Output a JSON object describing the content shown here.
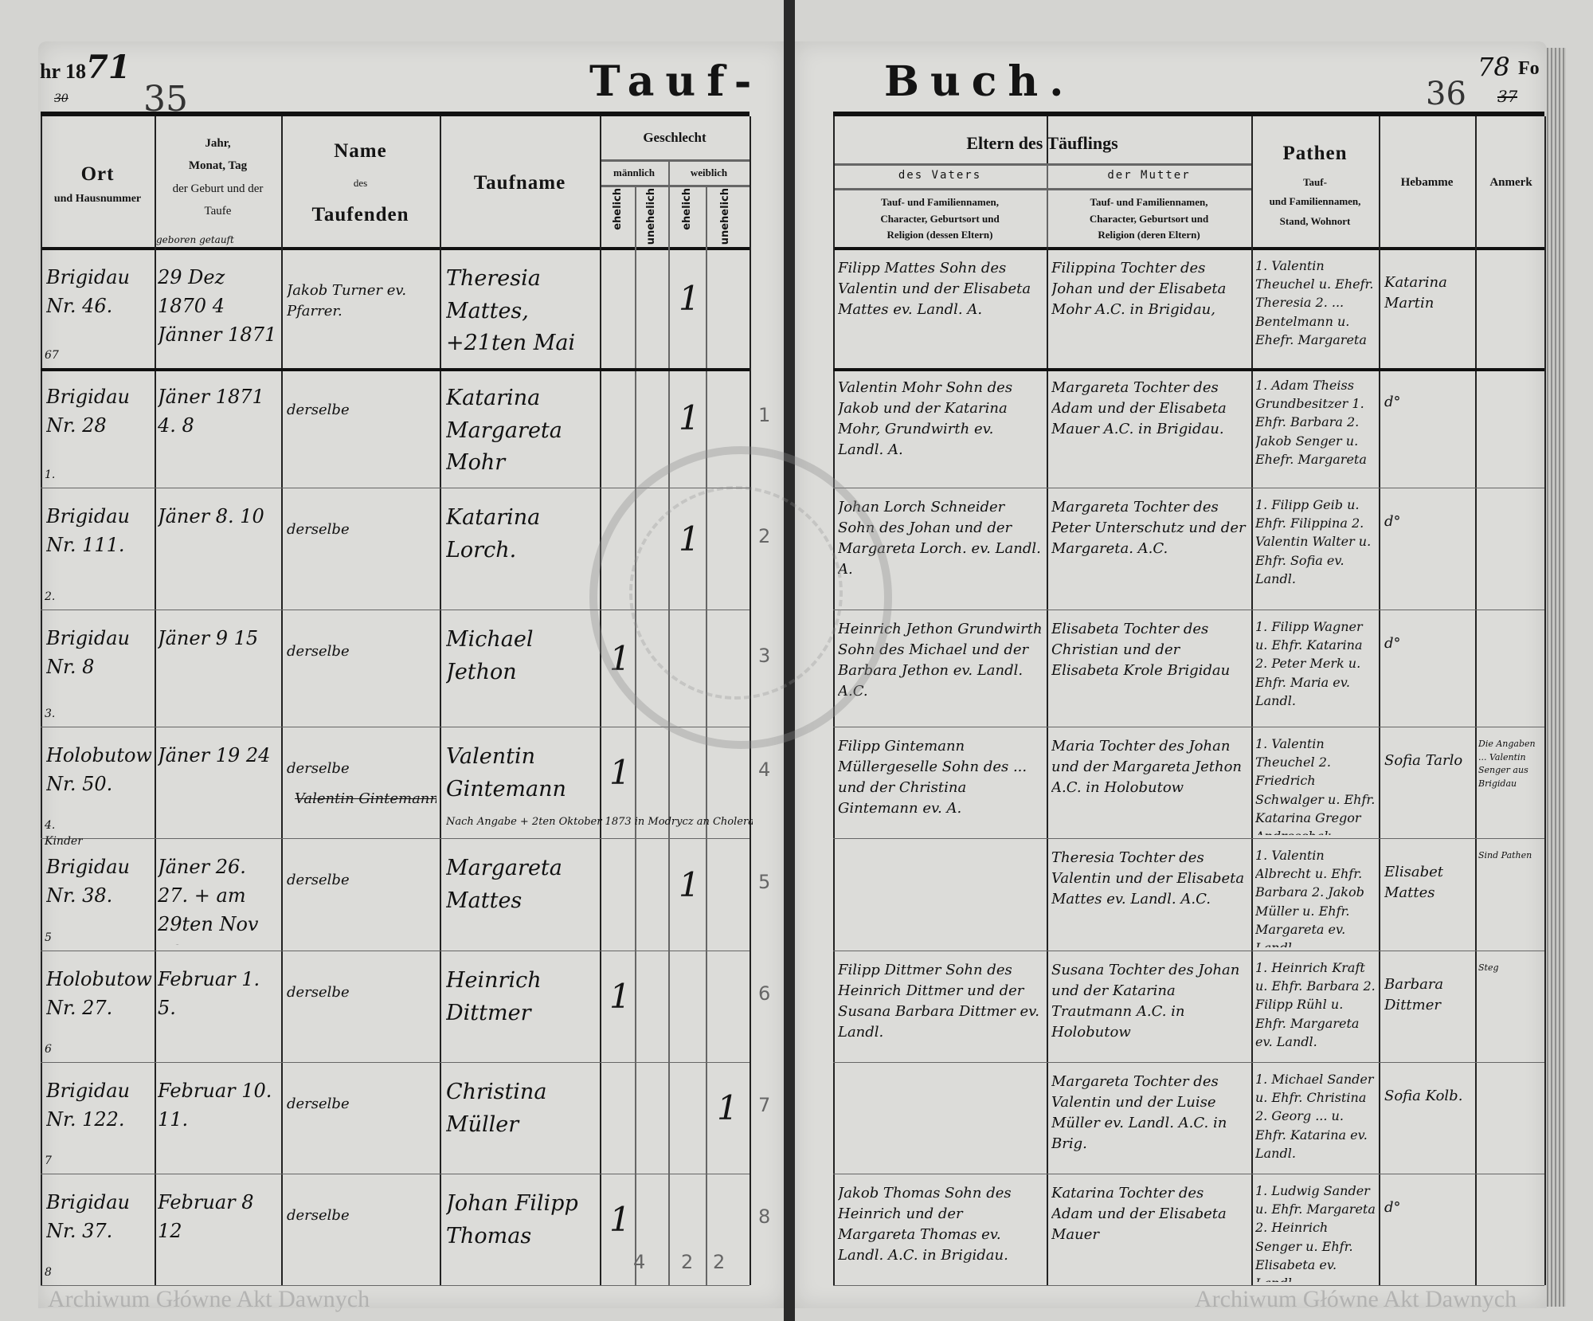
{
  "header": {
    "year_prefix": "hr 18",
    "year_hand": "71",
    "left_folio": "35",
    "left_folio_struck": "30",
    "title_left": "Tauf-",
    "title_right": "Buch.",
    "right_folio": "36",
    "right_folio_alt": "78",
    "right_folio_struck": "37",
    "fo_label": "Fo"
  },
  "columns": {
    "ort": [
      "Ort",
      "und Hausnummer"
    ],
    "date": [
      "Jahr,",
      "Monat, Tag",
      "der Geburt und der",
      "Taufe"
    ],
    "date_sub": "geboren getauft",
    "name": [
      "Name",
      "des",
      "Taufenden"
    ],
    "taufname": "Taufname",
    "geschlecht": "Geschlecht",
    "maennlich": "männlich",
    "weiblich": "weiblich",
    "ehelich": "ehelich",
    "unehelich": "unehelich",
    "eltern": "Eltern des Täuflings",
    "vater": "des Vaters",
    "mutter": "der Mutter",
    "vater_desc": [
      "Tauf- und Familiennamen,",
      "Character, Geburtsort und",
      "Religion (dessen Eltern)"
    ],
    "mutter_desc": [
      "Tauf- und Familiennamen,",
      "Character, Geburtsort und",
      "Religion (deren Eltern)"
    ],
    "pathen": "Pathen",
    "pathen_desc": [
      "Tauf-",
      "und Familiennamen,",
      "Stand, Wohnort"
    ],
    "hebamme": "Hebamme",
    "anmerk": "Anmerk"
  },
  "rows": [
    {
      "nr": "67",
      "ort": "Brigidau Nr. 46.",
      "date": "29 Dez 1870  4 Jänner 1871",
      "taufender": "Jakob Turner ev. Pfarrer.",
      "taufname": "Theresia Mattes, +21ten Mai 1873.",
      "mark": 2,
      "index": "",
      "vater": "Filipp Mattes Sohn des Valentin und der Elisabeta Mattes ev. Landl. A.",
      "mutter": "Filippina Tochter des Johan und der Elisabeta Mohr A.C. in Brigidau,",
      "pathen": "1. Valentin Theuchel u. Ehefr. Theresia 2. ... Bentelmann u. Ehefr. Margareta",
      "hebamme": "Katarina Martin",
      "anmerk": ""
    },
    {
      "nr": "1.",
      "ort": "Brigidau Nr. 28",
      "date": "Jäner 1871  4.  8",
      "taufender": "derselbe",
      "taufname": "Katarina Margareta Mohr",
      "mark": 2,
      "index": "1",
      "vater": "Valentin Mohr Sohn des Jakob und der Katarina Mohr, Grundwirth ev. Landl. A.",
      "mutter": "Margareta Tochter des Adam und der Elisabeta Mauer A.C. in Brigidau.",
      "pathen": "1. Adam Theiss Grundbesitzer 1. Ehfr. Barbara 2. Jakob Senger u. Ehefr. Margareta",
      "hebamme": "d°",
      "anmerk": ""
    },
    {
      "nr": "2.",
      "ort": "Brigidau Nr. 111.",
      "date": "Jäner  8.  10",
      "taufender": "derselbe",
      "taufname": "Katarina Lorch.",
      "mark": 2,
      "index": "2",
      "vater": "Johan Lorch Schneider Sohn des Johan und der Margareta Lorch. ev. Landl. A.",
      "mutter": "Margareta Tochter des Peter Unterschutz und der Margareta. A.C.",
      "pathen": "1. Filipp Geib u. Ehfr. Filippina 2. Valentin Walter u. Ehfr. Sofia ev. Landl.",
      "hebamme": "d°",
      "anmerk": ""
    },
    {
      "nr": "3.",
      "ort": "Brigidau Nr. 8",
      "date": "Jäner  9  15",
      "taufender": "derselbe",
      "taufname": "Michael Jethon",
      "mark": 0,
      "index": "3",
      "vater": "Heinrich Jethon Grundwirth Sohn des Michael und der Barbara Jethon ev. Landl. A.C.",
      "mutter": "Elisabeta Tochter des Christian und der Elisabeta Krole Brigidau",
      "pathen": "1. Filipp Wagner u. Ehfr. Katarina 2. Peter Merk u. Ehfr. Maria ev. Landl.",
      "hebamme": "d°",
      "anmerk": ""
    },
    {
      "nr": "4. Kinder",
      "ort": "Holobutow Nr. 50.",
      "date": "Jäner  19  24",
      "taufender": "derselbe",
      "taufender_struck": "Valentin Gintemann",
      "taufname": "Valentin Gintemann",
      "note": "Nach Angabe + 2ten Oktober 1873 in Modrycz an Cholera",
      "mark": 0,
      "index": "4",
      "vater": "Filipp Gintemann Müllergeselle Sohn des ... und der Christina Gintemann ev. A.",
      "mutter": "Maria Tochter des Johan und der Margareta Jethon A.C. in Holobutow",
      "pathen": "1. Valentin Theuchel 2. Friedrich Schwalger u. Ehfr. Katarina Gregor Andreschak",
      "hebamme": "Sofia Tarlo",
      "anmerk": "Die Angaben ... Valentin Senger aus Brigidau"
    },
    {
      "nr": "5",
      "ort": "Brigidau Nr. 38.",
      "date": "Jäner  26.  27.  + am 29ten Nov 1871.",
      "taufender": "derselbe",
      "taufname": "Margareta Mattes",
      "mark": 2,
      "index": "5",
      "vater": "",
      "mutter": "Theresia Tochter des Valentin und der Elisabeta Mattes ev. Landl. A.C.",
      "pathen": "1. Valentin Albrecht u. Ehfr. Barbara 2. Jakob Müller u. Ehfr. Margareta ev. Landl.",
      "hebamme": "Elisabet Mattes",
      "anmerk": "Sind Pathen"
    },
    {
      "nr": "6",
      "ort": "Holobutow Nr. 27.",
      "date": "Februar  1.  5.",
      "taufender": "derselbe",
      "taufname": "Heinrich Dittmer",
      "mark": 0,
      "index": "6",
      "vater": "Filipp Dittmer Sohn des Heinrich Dittmer und der Susana Barbara Dittmer ev. Landl.",
      "mutter": "Susana Tochter des Johan und der Katarina Trautmann A.C. in Holobutow",
      "pathen": "1. Heinrich Kraft u. Ehfr. Barbara 2. Filipp Rühl u. Ehfr. Margareta ev. Landl.",
      "hebamme": "Barbara Dittmer",
      "anmerk": "Steg"
    },
    {
      "nr": "7",
      "ort": "Brigidau Nr. 122.",
      "date": "Februar  10.  11.",
      "taufender": "derselbe",
      "taufname": "Christina Müller",
      "mark": 3,
      "index": "7",
      "vater": "",
      "mutter": "Margareta Tochter des Valentin und der Luise Müller ev. Landl. A.C. in Brig.",
      "pathen": "1. Michael Sander u. Ehfr. Christina 2. Georg ... u. Ehfr. Katarina ev. Landl.",
      "hebamme": "Sofia Kolb.",
      "anmerk": ""
    },
    {
      "nr": "8",
      "ort": "Brigidau Nr. 37.",
      "date": "Februar  8  12",
      "taufender": "derselbe",
      "taufname": "Johan Filipp Thomas",
      "mark": 0,
      "index": "8",
      "vater": "Jakob Thomas Sohn des Heinrich und der Margareta Thomas ev. Landl. A.C. in Brigidau.",
      "mutter": "Katarina Tochter des Adam und der Elisabeta Mauer",
      "pathen": "1. Ludwig Sander u. Ehfr. Margareta 2. Heinrich Senger u. Ehfr. Elisabeta ev. Landl.",
      "hebamme": "d°",
      "anmerk": ""
    }
  ],
  "mark_symbol": "1",
  "tallies": [
    "4",
    "2",
    "2"
  ],
  "watermark": "Archiwum Główne Akt Dawnych",
  "stamp_text": "ARCHIWUM GŁÓWNE AKT DAWNYCH"
}
